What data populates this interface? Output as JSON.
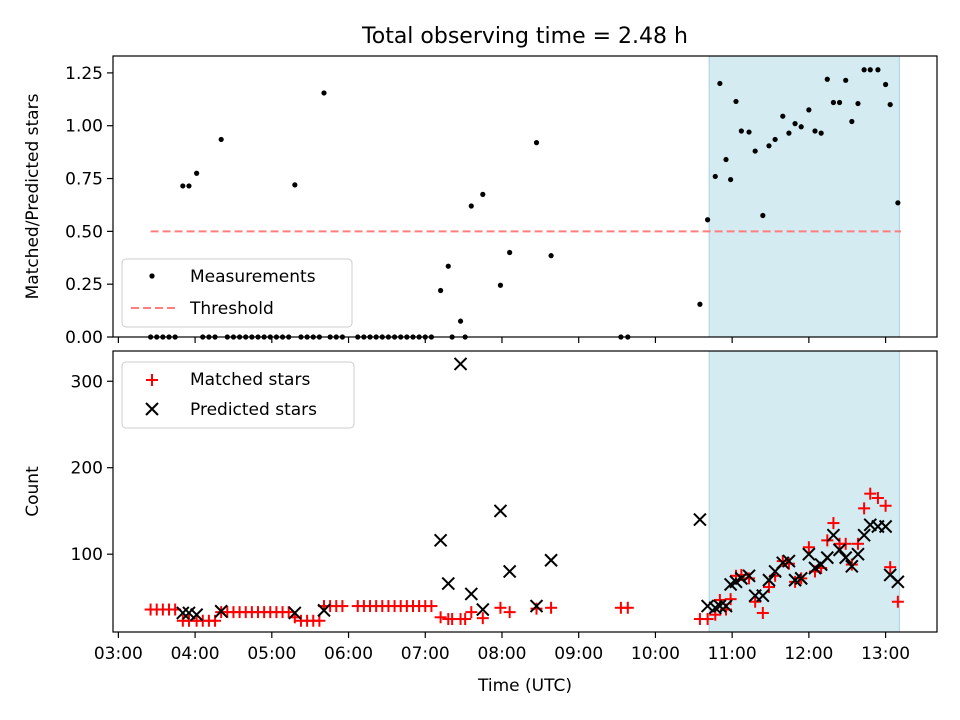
{
  "chart_data": [
    {
      "type": "scatter",
      "title": "Total observing time = 2.48 h",
      "xlabel": "",
      "ylabel": "Matched/Predicted stars",
      "ylim": [
        0,
        1.33
      ],
      "xlim": [
        2.93,
        13.67
      ],
      "yticks": [
        0,
        0.25,
        0.5,
        0.75,
        1.0,
        1.25
      ],
      "ytick_labels": [
        "0.00",
        "0.25",
        "0.50",
        "0.75",
        "1.00",
        "1.25"
      ],
      "grid": false,
      "legend_position": "lower-left",
      "highlight_region": {
        "x_start": 10.7,
        "x_end": 13.18,
        "color": "#d3ebf1"
      },
      "series": [
        {
          "name": "Measurements",
          "marker": "dot",
          "color": "#000000",
          "points": [
            [
              3.42,
              0
            ],
            [
              3.5,
              0
            ],
            [
              3.58,
              0
            ],
            [
              3.66,
              0
            ],
            [
              3.74,
              0
            ],
            [
              3.84,
              0.715
            ],
            [
              3.92,
              0.715
            ],
            [
              4.02,
              0.775
            ],
            [
              4.1,
              0
            ],
            [
              4.18,
              0
            ],
            [
              4.26,
              0
            ],
            [
              4.34,
              0.935
            ],
            [
              4.42,
              0
            ],
            [
              4.5,
              0
            ],
            [
              4.58,
              0
            ],
            [
              4.66,
              0
            ],
            [
              4.74,
              0
            ],
            [
              4.82,
              0
            ],
            [
              4.9,
              0
            ],
            [
              4.98,
              0
            ],
            [
              5.06,
              0
            ],
            [
              5.14,
              0
            ],
            [
              5.22,
              0
            ],
            [
              5.3,
              0.72
            ],
            [
              5.38,
              0
            ],
            [
              5.46,
              0
            ],
            [
              5.54,
              0
            ],
            [
              5.62,
              0
            ],
            [
              5.68,
              1.155
            ],
            [
              5.76,
              0
            ],
            [
              5.84,
              0
            ],
            [
              5.92,
              0
            ],
            [
              6.12,
              0
            ],
            [
              6.2,
              0
            ],
            [
              6.28,
              0
            ],
            [
              6.36,
              0
            ],
            [
              6.44,
              0
            ],
            [
              6.52,
              0
            ],
            [
              6.6,
              0
            ],
            [
              6.68,
              0
            ],
            [
              6.76,
              0
            ],
            [
              6.84,
              0
            ],
            [
              6.92,
              0
            ],
            [
              7.0,
              0
            ],
            [
              7.08,
              0
            ],
            [
              7.2,
              0.22
            ],
            [
              7.3,
              0.335
            ],
            [
              7.35,
              0
            ],
            [
              7.46,
              0.075
            ],
            [
              7.52,
              0
            ],
            [
              7.6,
              0.62
            ],
            [
              7.75,
              0.675
            ],
            [
              7.98,
              0.245
            ],
            [
              8.1,
              0.4
            ],
            [
              8.45,
              0.92
            ],
            [
              8.64,
              0.385
            ],
            [
              9.55,
              0
            ],
            [
              9.64,
              0
            ],
            [
              10.58,
              0.155
            ],
            [
              10.68,
              0.555
            ],
            [
              10.78,
              0.76
            ],
            [
              10.84,
              1.2
            ],
            [
              10.92,
              0.84
            ],
            [
              10.98,
              0.745
            ],
            [
              11.05,
              1.115
            ],
            [
              11.12,
              0.975
            ],
            [
              11.22,
              0.97
            ],
            [
              11.3,
              0.88
            ],
            [
              11.4,
              0.575
            ],
            [
              11.48,
              0.905
            ],
            [
              11.56,
              0.935
            ],
            [
              11.66,
              1.045
            ],
            [
              11.74,
              0.965
            ],
            [
              11.82,
              1.01
            ],
            [
              11.9,
              0.995
            ],
            [
              12.0,
              1.075
            ],
            [
              12.08,
              0.975
            ],
            [
              12.16,
              0.965
            ],
            [
              12.24,
              1.22
            ],
            [
              12.32,
              1.11
            ],
            [
              12.4,
              1.11
            ],
            [
              12.48,
              1.215
            ],
            [
              12.56,
              1.02
            ],
            [
              12.64,
              1.105
            ],
            [
              12.72,
              1.265
            ],
            [
              12.8,
              1.265
            ],
            [
              12.9,
              1.265
            ],
            [
              13.0,
              1.195
            ],
            [
              13.06,
              1.1
            ],
            [
              13.16,
              0.635
            ]
          ]
        },
        {
          "name": "Threshold",
          "marker": "dashed-line",
          "color": "#ff7f7f",
          "points": [
            [
              3.42,
              0.5
            ],
            [
              13.2,
              0.5
            ]
          ]
        }
      ]
    },
    {
      "type": "scatter",
      "title": "",
      "xlabel": "Time (UTC)",
      "ylabel": "Count",
      "ylim": [
        10,
        335
      ],
      "xlim": [
        2.93,
        13.67
      ],
      "yticks": [
        100,
        200,
        300
      ],
      "ytick_labels": [
        "100",
        "200",
        "300"
      ],
      "xticks": [
        3,
        4,
        5,
        6,
        7,
        8,
        9,
        10,
        11,
        12,
        13
      ],
      "xtick_labels": [
        "03:00",
        "04:00",
        "05:00",
        "06:00",
        "07:00",
        "08:00",
        "09:00",
        "10:00",
        "11:00",
        "12:00",
        "13:00"
      ],
      "grid": false,
      "legend_position": "top-left",
      "highlight_region": {
        "x_start": 10.7,
        "x_end": 13.18,
        "color": "#d3ebf1"
      },
      "series": [
        {
          "name": "Matched stars",
          "marker": "plus",
          "color": "#ff0000",
          "points": [
            [
              3.42,
              36
            ],
            [
              3.5,
              36
            ],
            [
              3.58,
              36
            ],
            [
              3.66,
              36
            ],
            [
              3.74,
              36
            ],
            [
              3.84,
              23
            ],
            [
              3.92,
              23
            ],
            [
              4.02,
              23
            ],
            [
              4.1,
              23
            ],
            [
              4.18,
              23
            ],
            [
              4.26,
              23
            ],
            [
              4.34,
              33
            ],
            [
              4.42,
              33
            ],
            [
              4.5,
              33
            ],
            [
              4.58,
              33
            ],
            [
              4.66,
              33
            ],
            [
              4.74,
              33
            ],
            [
              4.82,
              33
            ],
            [
              4.9,
              33
            ],
            [
              4.98,
              33
            ],
            [
              5.06,
              33
            ],
            [
              5.14,
              33
            ],
            [
              5.22,
              33
            ],
            [
              5.3,
              27
            ],
            [
              5.38,
              23
            ],
            [
              5.46,
              23
            ],
            [
              5.54,
              23
            ],
            [
              5.62,
              23
            ],
            [
              5.68,
              40
            ],
            [
              5.76,
              40
            ],
            [
              5.84,
              40
            ],
            [
              5.92,
              40
            ],
            [
              6.12,
              40
            ],
            [
              6.2,
              40
            ],
            [
              6.28,
              40
            ],
            [
              6.36,
              40
            ],
            [
              6.44,
              40
            ],
            [
              6.52,
              40
            ],
            [
              6.6,
              40
            ],
            [
              6.68,
              40
            ],
            [
              6.76,
              40
            ],
            [
              6.84,
              40
            ],
            [
              6.92,
              40
            ],
            [
              7.0,
              40
            ],
            [
              7.08,
              40
            ],
            [
              7.2,
              27
            ],
            [
              7.3,
              25
            ],
            [
              7.35,
              25
            ],
            [
              7.46,
              25
            ],
            [
              7.52,
              25
            ],
            [
              7.6,
              33
            ],
            [
              7.75,
              26
            ],
            [
              7.98,
              38
            ],
            [
              8.1,
              33
            ],
            [
              8.45,
              37
            ],
            [
              8.64,
              38
            ],
            [
              9.55,
              38
            ],
            [
              9.64,
              38
            ],
            [
              10.58,
              25
            ],
            [
              10.68,
              25
            ],
            [
              10.78,
              30
            ],
            [
              10.84,
              47
            ],
            [
              10.92,
              36
            ],
            [
              10.98,
              48
            ],
            [
              11.05,
              75
            ],
            [
              11.12,
              76
            ],
            [
              11.22,
              72
            ],
            [
              11.3,
              45
            ],
            [
              11.4,
              32
            ],
            [
              11.48,
              62
            ],
            [
              11.56,
              75
            ],
            [
              11.66,
              92
            ],
            [
              11.74,
              89
            ],
            [
              11.82,
              68
            ],
            [
              11.9,
              72
            ],
            [
              12.0,
              108
            ],
            [
              12.08,
              80
            ],
            [
              12.16,
              84
            ],
            [
              12.24,
              116
            ],
            [
              12.32,
              136
            ],
            [
              12.4,
              112
            ],
            [
              12.48,
              112
            ],
            [
              12.56,
              88
            ],
            [
              12.64,
              112
            ],
            [
              12.72,
              153
            ],
            [
              12.8,
              170
            ],
            [
              12.9,
              165
            ],
            [
              13.0,
              156
            ],
            [
              13.06,
              85
            ],
            [
              13.16,
              45
            ]
          ]
        },
        {
          "name": "Predicted stars",
          "marker": "x",
          "color": "#000000",
          "points": [
            [
              3.84,
              32
            ],
            [
              3.92,
              32
            ],
            [
              4.02,
              30
            ],
            [
              4.34,
              34
            ],
            [
              5.3,
              32
            ],
            [
              5.68,
              35
            ],
            [
              7.2,
              116
            ],
            [
              7.3,
              66
            ],
            [
              7.46,
              320
            ],
            [
              7.6,
              54
            ],
            [
              7.75,
              36
            ],
            [
              7.98,
              150
            ],
            [
              8.1,
              80
            ],
            [
              8.45,
              40
            ],
            [
              8.64,
              93
            ],
            [
              10.58,
              140
            ],
            [
              10.68,
              40
            ],
            [
              10.78,
              38
            ],
            [
              10.84,
              40
            ],
            [
              10.92,
              40
            ],
            [
              10.98,
              65
            ],
            [
              11.05,
              68
            ],
            [
              11.12,
              72
            ],
            [
              11.22,
              75
            ],
            [
              11.3,
              52
            ],
            [
              11.4,
              52
            ],
            [
              11.48,
              70
            ],
            [
              11.56,
              80
            ],
            [
              11.66,
              90
            ],
            [
              11.74,
              92
            ],
            [
              11.82,
              70
            ],
            [
              11.9,
              72
            ],
            [
              12.0,
              100
            ],
            [
              12.08,
              84
            ],
            [
              12.16,
              88
            ],
            [
              12.24,
              96
            ],
            [
              12.32,
              122
            ],
            [
              12.4,
              105
            ],
            [
              12.48,
              96
            ],
            [
              12.56,
              86
            ],
            [
              12.64,
              100
            ],
            [
              12.72,
              122
            ],
            [
              12.8,
              134
            ],
            [
              12.9,
              132
            ],
            [
              13.0,
              132
            ],
            [
              13.06,
              76
            ],
            [
              13.16,
              68
            ]
          ]
        }
      ]
    }
  ]
}
